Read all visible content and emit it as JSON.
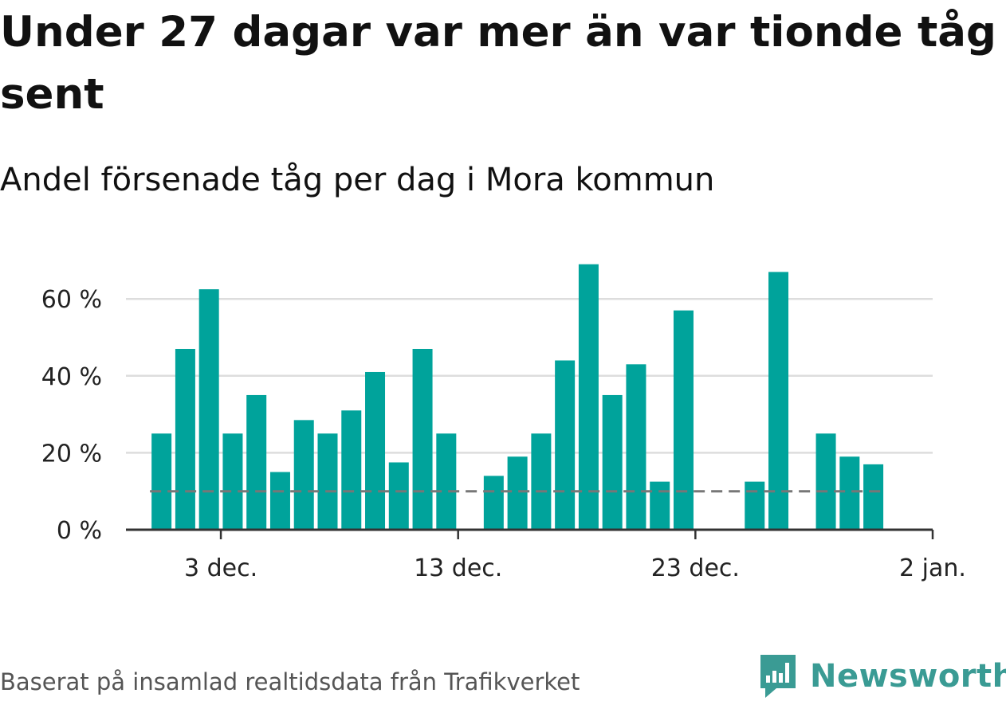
{
  "header": {
    "title": "Under 27 dagar var mer än var tionde tåg sent",
    "subtitle": "Andel försenade tåg per dag i Mora kommun"
  },
  "footer": {
    "source": "Baserat på insamlad realtidsdata från Trafikverket",
    "brand": "Newsworthy"
  },
  "colors": {
    "bar": "#00a39b",
    "reference_line": "#777777",
    "grid": "#dddddd",
    "axis": "#333333",
    "brand": "#3a9b94"
  },
  "icons": {
    "logo": "bar-chart-speech-bubble-icon"
  },
  "chart_data": {
    "type": "bar",
    "title": "Andel försenade tåg per dag i Mora kommun",
    "xlabel": "",
    "ylabel": "",
    "unit": "%",
    "x": [
      "2023-11-29",
      "2023-11-30",
      "2023-12-01",
      "2023-12-02",
      "2023-12-03",
      "2023-12-04",
      "2023-12-05",
      "2023-12-06",
      "2023-12-07",
      "2023-12-08",
      "2023-12-09",
      "2023-12-10",
      "2023-12-11",
      "2023-12-12",
      "2023-12-13",
      "2023-12-14",
      "2023-12-15",
      "2023-12-16",
      "2023-12-17",
      "2023-12-18",
      "2023-12-19",
      "2023-12-20",
      "2023-12-21",
      "2023-12-22",
      "2023-12-23",
      "2023-12-24",
      "2023-12-25",
      "2023-12-26",
      "2023-12-27",
      "2023-12-28",
      "2023-12-29",
      "2023-12-30",
      "2023-12-31"
    ],
    "values": [
      null,
      25,
      47,
      62.5,
      25,
      35,
      15,
      28.5,
      25,
      31,
      41,
      17.5,
      47,
      25,
      null,
      14,
      19,
      25,
      44,
      69,
      35,
      43,
      12.5,
      57,
      null,
      null,
      12.5,
      67,
      null,
      25,
      19,
      17,
      null
    ],
    "reference_line": {
      "value": 10
    },
    "yticks": [
      0,
      20,
      40,
      60
    ],
    "ytick_labels": [
      "0 %",
      "20 %",
      "40 %",
      "60 %"
    ],
    "xticks": [
      "2023-12-03",
      "2023-12-13",
      "2023-12-23",
      "2024-01-02"
    ],
    "xtick_labels": [
      "3 dec.",
      "13 dec.",
      "23 dec.",
      "2 jan."
    ],
    "ylim": [
      0,
      70
    ],
    "xlim": [
      "2023-11-29",
      "2024-01-02"
    ],
    "grid": true,
    "legend": false
  }
}
